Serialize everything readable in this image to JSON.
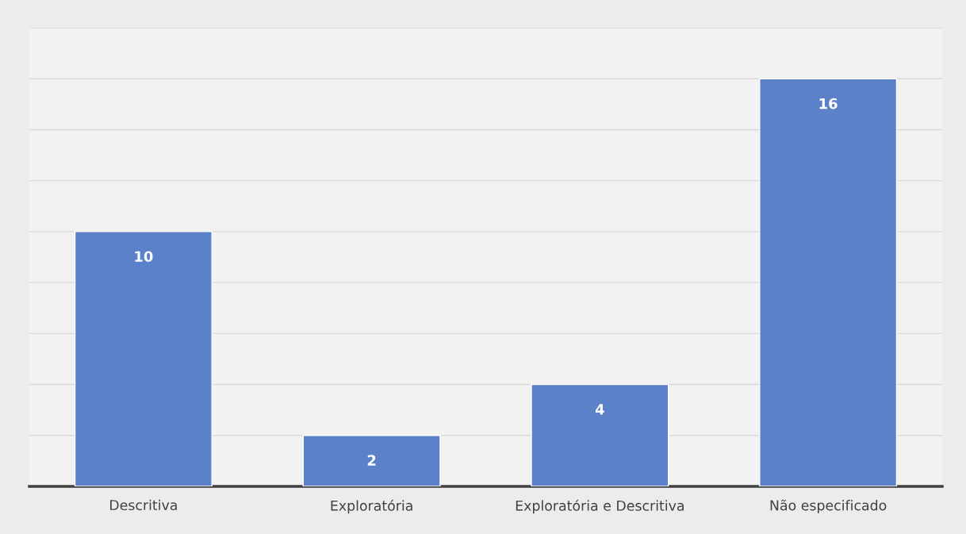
{
  "chart_data": {
    "type": "bar",
    "categories": [
      "Descritiva",
      "Exploratória",
      "Exploratória e Descritiva",
      "Não especificado"
    ],
    "values": [
      10,
      2,
      4,
      16
    ],
    "color": "#5b82c8",
    "data_labels": true,
    "grid": "y",
    "tick_labels": "x",
    "ylim": [
      0,
      18
    ],
    "yticks": [
      {
        "value": 0,
        "label": null
      },
      {
        "value": 2,
        "label": null
      },
      {
        "value": 4,
        "label": null
      },
      {
        "value": 6,
        "label": null
      },
      {
        "value": 8,
        "label": null
      },
      {
        "value": 10,
        "label": null
      },
      {
        "value": 12,
        "label": null
      },
      {
        "value": 14,
        "label": null
      },
      {
        "value": 16,
        "label": null
      },
      {
        "value": 18,
        "label": null
      }
    ]
  }
}
